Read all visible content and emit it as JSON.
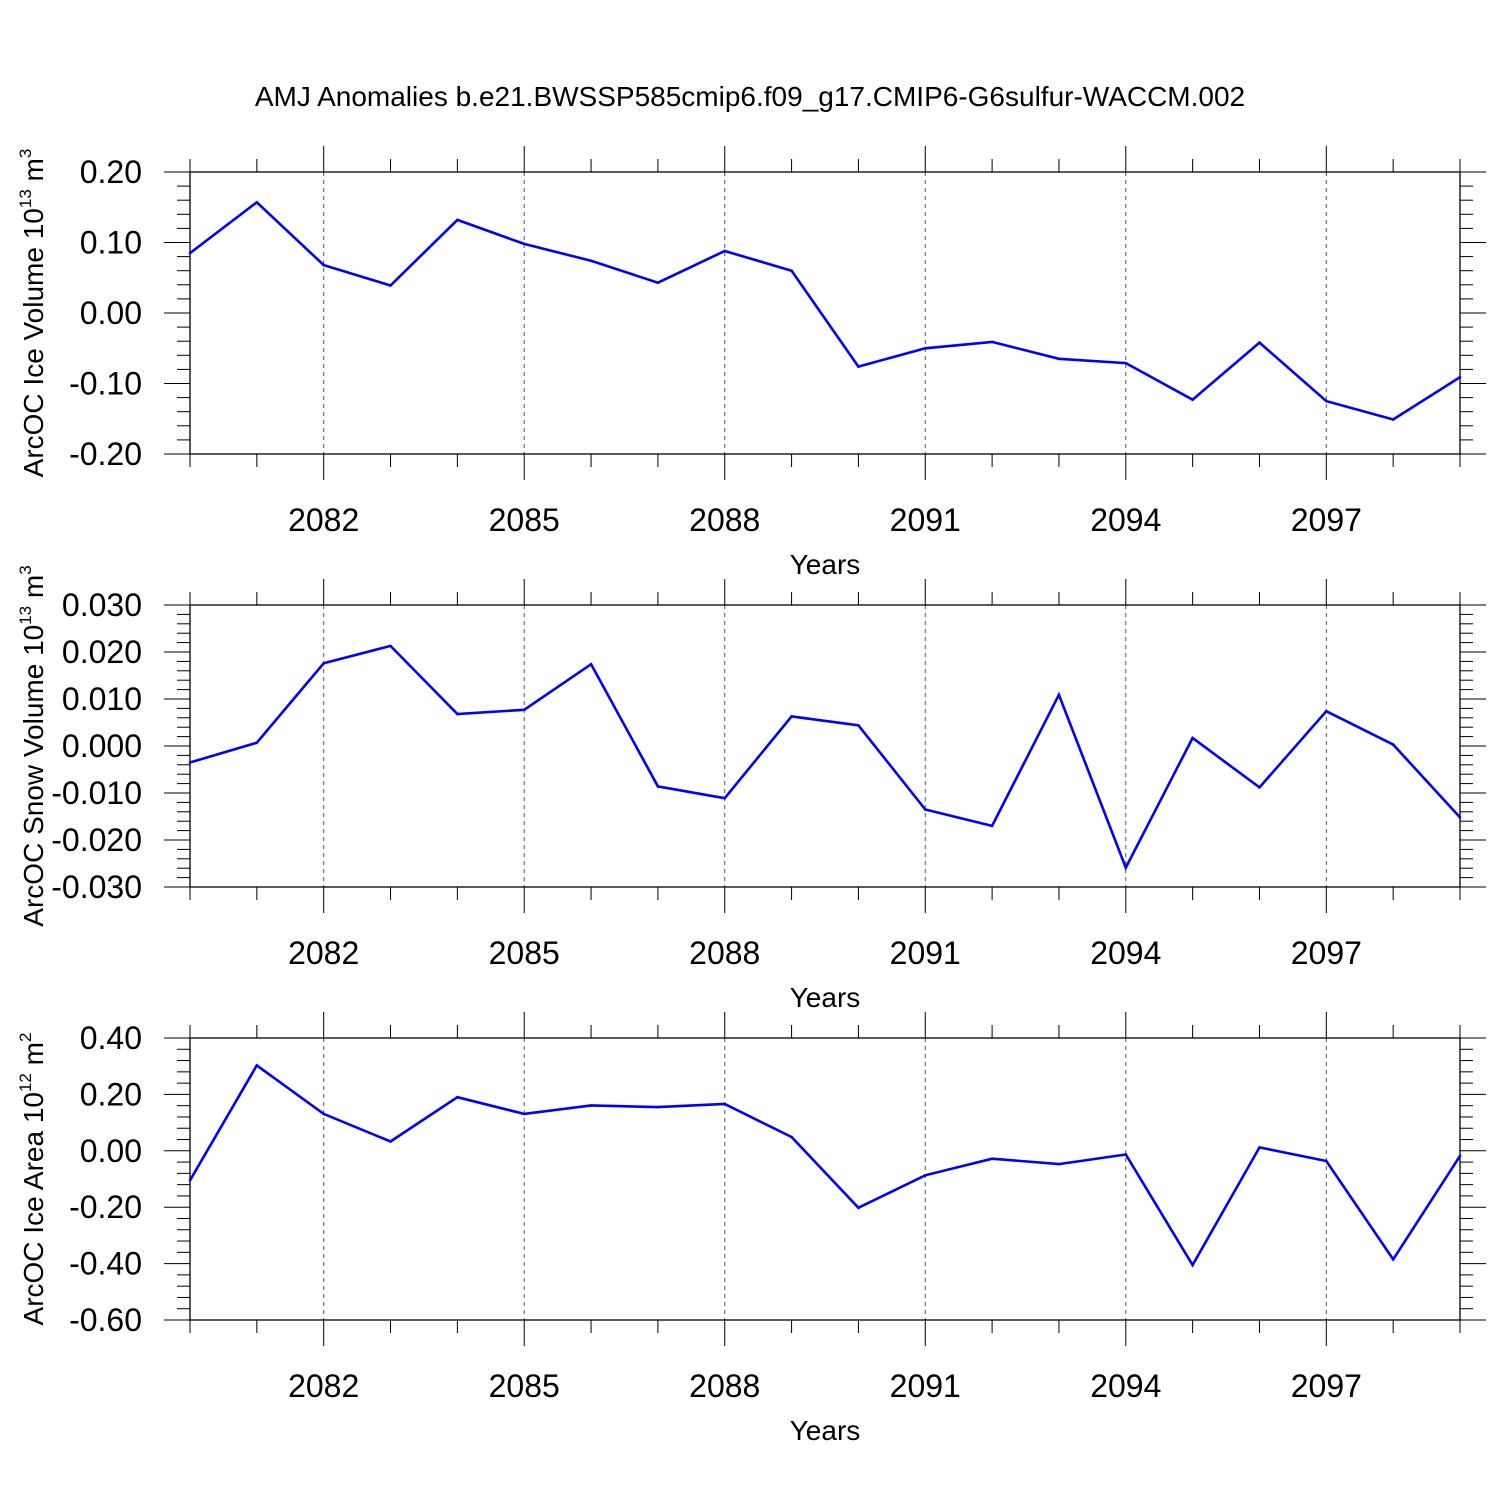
{
  "title": "AMJ Anomalies b.e21.BWSSP585cmip6.f09_g17.CMIP6-G6sulfur-WACCM.002",
  "line_color": "#0000ff",
  "chart_data": [
    {
      "type": "line",
      "ylabel_main": "ArcOC Ice Volume 10",
      "ylabel_exp": "13",
      "ylabel_unit": " m",
      "ylabel_unit_exp": "3",
      "xlabel": "Years",
      "xlim": [
        2080,
        2099
      ],
      "ylim": [
        -0.2,
        0.2
      ],
      "yticks": [
        -0.2,
        -0.1,
        0.0,
        0.1,
        0.2
      ],
      "yticklabels": [
        "-0.20",
        "-0.10",
        "0.00",
        "0.10",
        "0.20"
      ],
      "xticks": [
        2082,
        2085,
        2088,
        2091,
        2094,
        2097
      ],
      "xticklabels": [
        "2082",
        "2085",
        "2088",
        "2091",
        "2094",
        "2097"
      ],
      "x": [
        2080,
        2081,
        2082,
        2083,
        2084,
        2085,
        2086,
        2087,
        2088,
        2089,
        2090,
        2091,
        2092,
        2093,
        2094,
        2095,
        2096,
        2097,
        2098,
        2099
      ],
      "values": [
        0.085,
        0.157,
        0.068,
        0.039,
        0.132,
        0.098,
        0.074,
        0.043,
        0.088,
        0.06,
        -0.076,
        -0.05,
        -0.041,
        -0.065,
        -0.071,
        -0.123,
        -0.042,
        -0.125,
        -0.151,
        -0.091
      ]
    },
    {
      "type": "line",
      "ylabel_main": "ArcOC Snow Volume 10",
      "ylabel_exp": "13",
      "ylabel_unit": " m",
      "ylabel_unit_exp": "3",
      "xlabel": "Years",
      "xlim": [
        2080,
        2099
      ],
      "ylim": [
        -0.03,
        0.03
      ],
      "yticks": [
        -0.03,
        -0.02,
        -0.01,
        0.0,
        0.01,
        0.02,
        0.03
      ],
      "yticklabels": [
        "-0.030",
        "-0.020",
        "-0.010",
        "0.000",
        "0.010",
        "0.020",
        "0.030"
      ],
      "xticks": [
        2082,
        2085,
        2088,
        2091,
        2094,
        2097
      ],
      "xticklabels": [
        "2082",
        "2085",
        "2088",
        "2091",
        "2094",
        "2097"
      ],
      "x": [
        2080,
        2081,
        2082,
        2083,
        2084,
        2085,
        2086,
        2087,
        2088,
        2089,
        2090,
        2091,
        2092,
        2093,
        2094,
        2095,
        2096,
        2097,
        2098,
        2099
      ],
      "values": [
        -0.0035,
        0.0007,
        0.0176,
        0.0213,
        0.0068,
        0.0077,
        0.0174,
        -0.0086,
        -0.0111,
        0.0063,
        0.0044,
        -0.0135,
        -0.017,
        0.0109,
        -0.0259,
        0.0017,
        -0.0088,
        0.0074,
        0.0003,
        -0.0152
      ]
    },
    {
      "type": "line",
      "ylabel_main": "ArcOC Ice Area 10",
      "ylabel_exp": "12",
      "ylabel_unit": " m",
      "ylabel_unit_exp": "2",
      "xlabel": "Years",
      "xlim": [
        2080,
        2099
      ],
      "ylim": [
        -0.6,
        0.4
      ],
      "yticks": [
        -0.6,
        -0.4,
        -0.2,
        0.0,
        0.2,
        0.4
      ],
      "yticklabels": [
        "-0.60",
        "-0.40",
        "-0.20",
        "0.00",
        "0.20",
        "0.40"
      ],
      "xticks": [
        2082,
        2085,
        2088,
        2091,
        2094,
        2097
      ],
      "xticklabels": [
        "2082",
        "2085",
        "2088",
        "2091",
        "2094",
        "2097"
      ],
      "x": [
        2080,
        2081,
        2082,
        2083,
        2084,
        2085,
        2086,
        2087,
        2088,
        2089,
        2090,
        2091,
        2092,
        2093,
        2094,
        2095,
        2096,
        2097,
        2098,
        2099
      ],
      "values": [
        -0.105,
        0.303,
        0.131,
        0.033,
        0.19,
        0.131,
        0.161,
        0.155,
        0.166,
        0.049,
        -0.202,
        -0.087,
        -0.028,
        -0.047,
        -0.013,
        -0.405,
        0.012,
        -0.036,
        -0.385,
        -0.018
      ]
    }
  ]
}
